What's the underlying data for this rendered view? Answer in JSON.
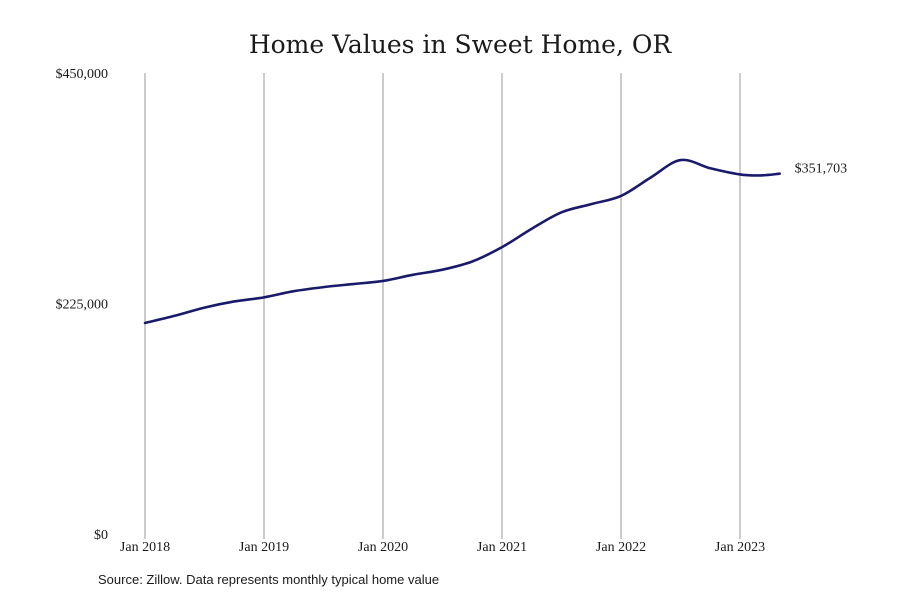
{
  "chart_data": {
    "type": "line",
    "title": "Home Values in Sweet Home, OR",
    "xlabel": "",
    "ylabel": "",
    "ylim": [
      0,
      450000
    ],
    "y_ticks": [
      0,
      225000,
      450000
    ],
    "y_tick_labels": [
      "$0",
      "$225,000",
      "$450,000"
    ],
    "x_ticks": [
      "2018-01",
      "2019-01",
      "2020-01",
      "2021-01",
      "2022-01",
      "2023-01"
    ],
    "x_tick_labels": [
      "Jan 2018",
      "Jan 2019",
      "Jan 2020",
      "Jan 2021",
      "Jan 2022",
      "Jan 2023"
    ],
    "grid": {
      "x": true,
      "y": false
    },
    "legend": "none",
    "end_label": "$351,703",
    "source": "Source: Zillow. Data represents monthly typical home value",
    "colors": {
      "line": "#1a1a6b",
      "grid": "#9a9a9a"
    },
    "series": [
      {
        "x": [
          "2018-01",
          "2018-04",
          "2018-07",
          "2018-10",
          "2019-01",
          "2019-04",
          "2019-07",
          "2019-10",
          "2020-01",
          "2020-04",
          "2020-07",
          "2020-10",
          "2021-01",
          "2021-04",
          "2021-07",
          "2021-10",
          "2022-01",
          "2022-04",
          "2022-07",
          "2022-10",
          "2023-01",
          "2023-03",
          "2023-05"
        ],
        "values": [
          206000,
          213000,
          221000,
          227000,
          231000,
          237000,
          241000,
          244000,
          247000,
          253000,
          258000,
          266000,
          280000,
          298000,
          314000,
          322000,
          330000,
          348000,
          365000,
          357000,
          351000,
          350000,
          351703
        ]
      }
    ]
  }
}
